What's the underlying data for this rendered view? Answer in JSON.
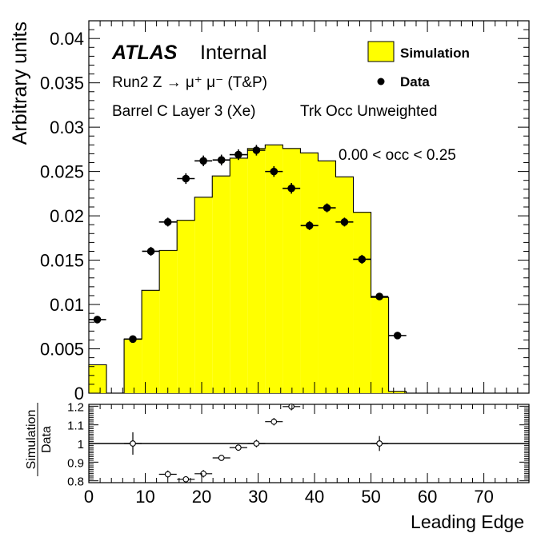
{
  "chart_data": [
    {
      "type": "histogram",
      "ylabel": "Arbitrary units",
      "xlim": [
        0,
        78
      ],
      "ylim": [
        0,
        0.042
      ],
      "y_ticks": [
        "0",
        "0.005",
        "0.01",
        "0.015",
        "0.02",
        "0.025",
        "0.03",
        "0.035",
        "0.04"
      ],
      "annotations": {
        "atlas": "ATLAS",
        "internal": "Internal",
        "run": "Run2 Z → μ⁺ μ⁻ (T&P)",
        "region": "Barrel C Layer 3 (Xe)",
        "mode": "Trk Occ Unweighted",
        "cut": "0.00 < occ < 0.25"
      },
      "legend": {
        "placement": "top-right",
        "entries": [
          {
            "label": "Simulation",
            "color": "#ffff00",
            "style": "fill"
          },
          {
            "label": "Data",
            "color": "#000000",
            "style": "marker"
          }
        ]
      },
      "bin_edges": [
        0,
        3.125,
        6.25,
        9.375,
        12.5,
        15.625,
        18.75,
        21.875,
        25,
        28.125,
        31.25,
        34.375,
        37.5,
        40.625,
        43.75,
        46.875,
        50,
        53.125,
        56.25
      ],
      "series": [
        {
          "name": "Simulation",
          "values": [
            0.0032,
            0.0,
            0.0061,
            0.0116,
            0.0161,
            0.0195,
            0.0221,
            0.0245,
            0.0265,
            0.0276,
            0.028,
            0.0276,
            0.0271,
            0.0262,
            0.0244,
            0.0204,
            0.0108,
            0.0002
          ]
        },
        {
          "name": "Data",
          "x": [
            1.5,
            7.8,
            11.0,
            14.0,
            17.2,
            20.3,
            23.5,
            26.5,
            29.7,
            32.8,
            35.9,
            39.1,
            42.2,
            45.3,
            48.4,
            51.5,
            54.7
          ],
          "values": [
            0.0083,
            0.0061,
            0.016,
            0.0193,
            0.0242,
            0.0262,
            0.0263,
            0.0269,
            0.0274,
            0.025,
            0.0231,
            0.0189,
            0.0209,
            0.0193,
            0.0151,
            0.0109,
            0.0065
          ],
          "yerr": [
            0.0004,
            0.0003,
            0.0005,
            0.0005,
            0.0006,
            0.0006,
            0.0006,
            0.0006,
            0.0006,
            0.0006,
            0.0006,
            0.0005,
            0.0005,
            0.0005,
            0.0005,
            0.0004,
            0.0003
          ]
        }
      ]
    },
    {
      "type": "scatter",
      "ylabel_top": "Simulation",
      "ylabel_bottom": "Data",
      "xlabel": "Leading Edge",
      "xlim": [
        0,
        78
      ],
      "ylim": [
        0.79,
        1.21
      ],
      "x_ticks": [
        "0",
        "10",
        "20",
        "30",
        "40",
        "50",
        "60",
        "70"
      ],
      "y_ticks": [
        "0.8",
        "0.9",
        "1",
        "1.1",
        "1.2"
      ],
      "reference_line": 1,
      "series": [
        {
          "name": "Simulation/Data",
          "x": [
            7.8,
            14.0,
            17.2,
            20.3,
            23.5,
            26.5,
            29.7,
            32.8,
            35.9,
            51.5
          ],
          "values": [
            1.0,
            0.835,
            0.808,
            0.838,
            0.923,
            0.978,
            1.0,
            1.117,
            1.198,
            1.0
          ],
          "yerr": [
            0.06,
            0.02,
            0.015,
            0.02,
            0.015,
            0.015,
            0.02,
            0.02,
            0.02,
            0.04
          ]
        }
      ]
    }
  ]
}
